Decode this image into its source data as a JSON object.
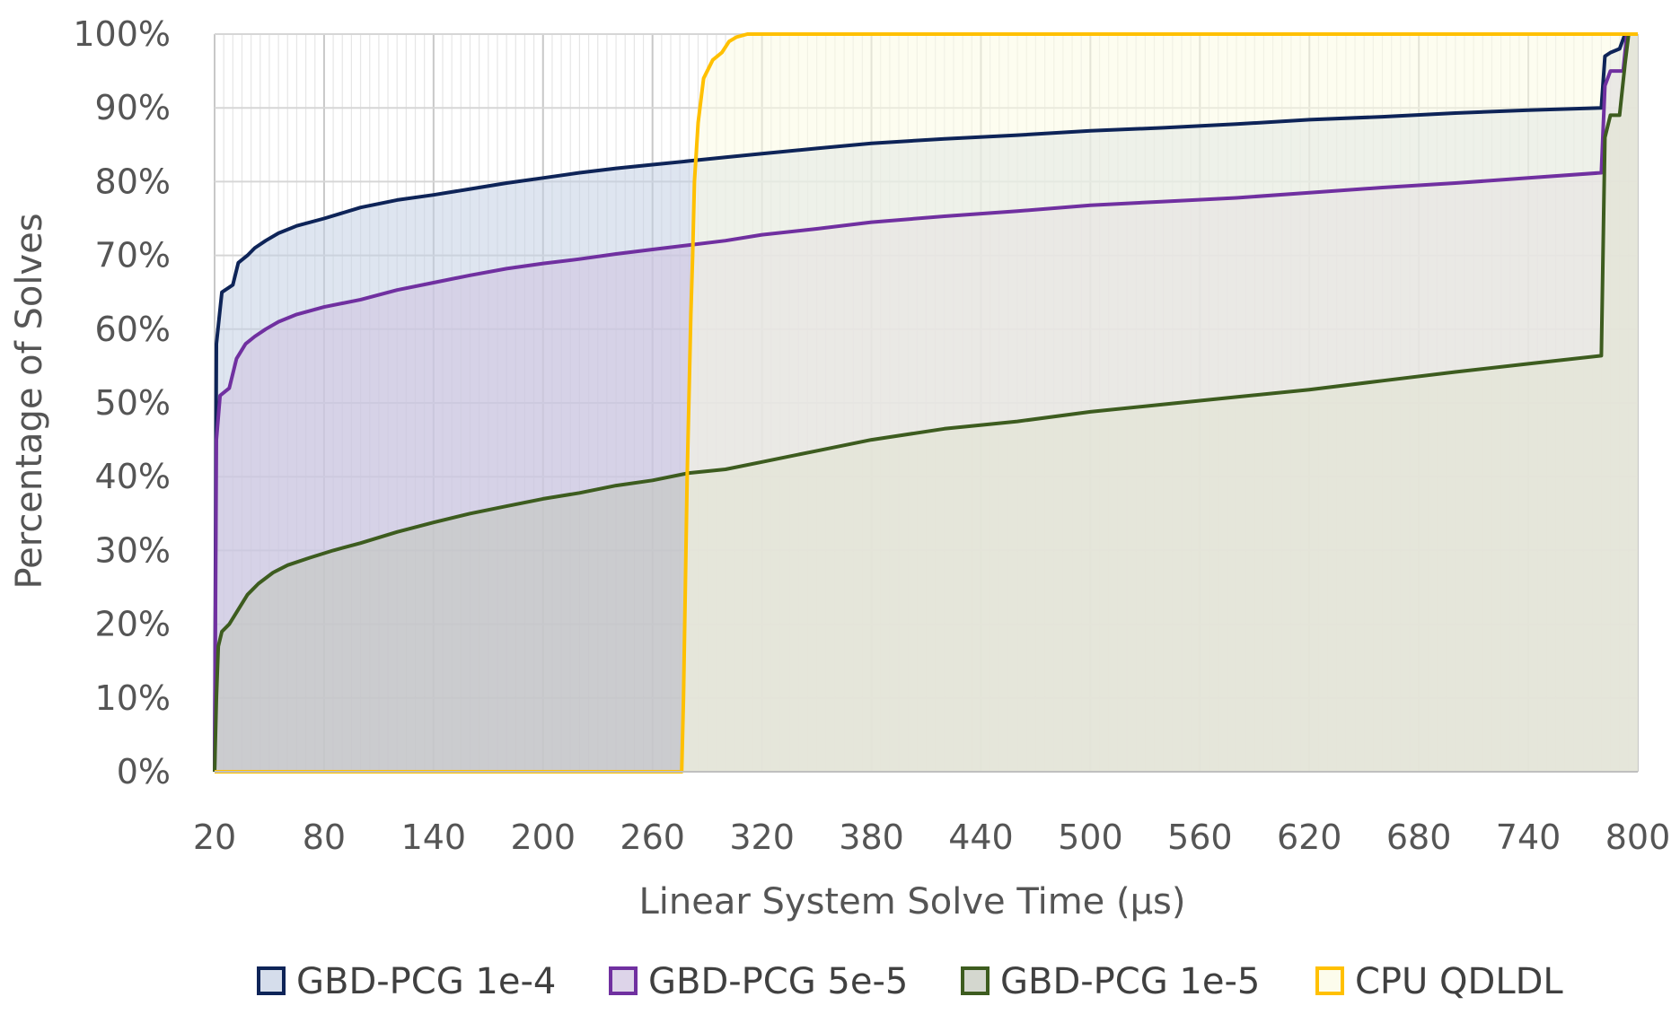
{
  "chart_data": {
    "type": "area",
    "title": "",
    "xlabel": "Linear System Solve Time  (µs)",
    "ylabel": "Percentage of Solves",
    "xlim": [
      20,
      800
    ],
    "ylim": [
      0,
      100
    ],
    "x_ticks": [
      20,
      80,
      140,
      200,
      260,
      320,
      380,
      440,
      500,
      560,
      620,
      680,
      740,
      800
    ],
    "y_ticks": [
      "0%",
      "10%",
      "20%",
      "30%",
      "40%",
      "50%",
      "60%",
      "70%",
      "80%",
      "90%",
      "100%"
    ],
    "y_tick_values": [
      0,
      10,
      20,
      30,
      40,
      50,
      60,
      70,
      80,
      90,
      100
    ],
    "grid": true,
    "legend_position": "bottom",
    "series": [
      {
        "name": "GBD-PCG 1e-4",
        "color": "#1f3864",
        "stroke": "#0e2458",
        "fill": "#c3cfe3",
        "points": [
          [
            20,
            0
          ],
          [
            21,
            58
          ],
          [
            24,
            65
          ],
          [
            30,
            66
          ],
          [
            33,
            69
          ],
          [
            38,
            70
          ],
          [
            42,
            71
          ],
          [
            48,
            72
          ],
          [
            55,
            73
          ],
          [
            65,
            74
          ],
          [
            80,
            75
          ],
          [
            100,
            76.5
          ],
          [
            120,
            77.5
          ],
          [
            140,
            78.2
          ],
          [
            160,
            79
          ],
          [
            180,
            79.8
          ],
          [
            200,
            80.5
          ],
          [
            220,
            81.2
          ],
          [
            240,
            81.8
          ],
          [
            260,
            82.3
          ],
          [
            280,
            82.8
          ],
          [
            300,
            83.3
          ],
          [
            320,
            83.8
          ],
          [
            350,
            84.5
          ],
          [
            380,
            85.2
          ],
          [
            420,
            85.8
          ],
          [
            460,
            86.3
          ],
          [
            500,
            86.9
          ],
          [
            540,
            87.3
          ],
          [
            580,
            87.8
          ],
          [
            620,
            88.4
          ],
          [
            660,
            88.8
          ],
          [
            700,
            89.3
          ],
          [
            740,
            89.7
          ],
          [
            780,
            90
          ],
          [
            782,
            97
          ],
          [
            785,
            97.5
          ],
          [
            790,
            98
          ],
          [
            793,
            100
          ],
          [
            800,
            100
          ]
        ]
      },
      {
        "name": "GBD-PCG 5e-5",
        "color": "#7030a0",
        "stroke": "#7030a0",
        "fill": "#cfc2e0",
        "points": [
          [
            20,
            0
          ],
          [
            21,
            45
          ],
          [
            23,
            51
          ],
          [
            28,
            52
          ],
          [
            32,
            56
          ],
          [
            37,
            58
          ],
          [
            42,
            59
          ],
          [
            48,
            60
          ],
          [
            55,
            61
          ],
          [
            65,
            62
          ],
          [
            80,
            63
          ],
          [
            100,
            64
          ],
          [
            120,
            65.3
          ],
          [
            140,
            66.3
          ],
          [
            160,
            67.3
          ],
          [
            180,
            68.2
          ],
          [
            200,
            68.9
          ],
          [
            220,
            69.5
          ],
          [
            240,
            70.2
          ],
          [
            260,
            70.8
          ],
          [
            280,
            71.4
          ],
          [
            300,
            72
          ],
          [
            320,
            72.8
          ],
          [
            350,
            73.6
          ],
          [
            380,
            74.5
          ],
          [
            420,
            75.3
          ],
          [
            460,
            76
          ],
          [
            500,
            76.8
          ],
          [
            540,
            77.3
          ],
          [
            580,
            77.8
          ],
          [
            620,
            78.5
          ],
          [
            660,
            79.2
          ],
          [
            700,
            79.8
          ],
          [
            740,
            80.5
          ],
          [
            780,
            81.2
          ],
          [
            782,
            93
          ],
          [
            785,
            95
          ],
          [
            792,
            95
          ],
          [
            794,
            100
          ],
          [
            800,
            100
          ]
        ]
      },
      {
        "name": "GBD-PCG 1e-5",
        "color": "#3a5a1c",
        "stroke": "#3d5c1f",
        "fill": "#c2c6bb",
        "points": [
          [
            20,
            0
          ],
          [
            21,
            10
          ],
          [
            22,
            17
          ],
          [
            24,
            19
          ],
          [
            28,
            20
          ],
          [
            33,
            22
          ],
          [
            38,
            24
          ],
          [
            44,
            25.5
          ],
          [
            52,
            27
          ],
          [
            60,
            28
          ],
          [
            72,
            29
          ],
          [
            85,
            30
          ],
          [
            100,
            31
          ],
          [
            120,
            32.5
          ],
          [
            140,
            33.8
          ],
          [
            160,
            35
          ],
          [
            180,
            36
          ],
          [
            200,
            37
          ],
          [
            220,
            37.8
          ],
          [
            240,
            38.8
          ],
          [
            260,
            39.5
          ],
          [
            280,
            40.5
          ],
          [
            300,
            41
          ],
          [
            320,
            42
          ],
          [
            350,
            43.5
          ],
          [
            380,
            45
          ],
          [
            420,
            46.5
          ],
          [
            460,
            47.5
          ],
          [
            500,
            48.8
          ],
          [
            540,
            49.8
          ],
          [
            580,
            50.8
          ],
          [
            620,
            51.8
          ],
          [
            660,
            53
          ],
          [
            700,
            54.2
          ],
          [
            740,
            55.3
          ],
          [
            780,
            56.4
          ],
          [
            782,
            86
          ],
          [
            785,
            89
          ],
          [
            790,
            89
          ],
          [
            793,
            96
          ],
          [
            795,
            100
          ],
          [
            800,
            100
          ]
        ]
      },
      {
        "name": "CPU QDLDL",
        "color": "#ffc000",
        "stroke": "#ffc000",
        "fill": "#fbfbe4",
        "points": [
          [
            20,
            0
          ],
          [
            276,
            0
          ],
          [
            277,
            10
          ],
          [
            279,
            40
          ],
          [
            281,
            62
          ],
          [
            282,
            70
          ],
          [
            283,
            80
          ],
          [
            285,
            88
          ],
          [
            288,
            94
          ],
          [
            293,
            96.5
          ],
          [
            298,
            97.5
          ],
          [
            302,
            99
          ],
          [
            306,
            99.6
          ],
          [
            312,
            100
          ],
          [
            800,
            100
          ]
        ]
      }
    ]
  }
}
